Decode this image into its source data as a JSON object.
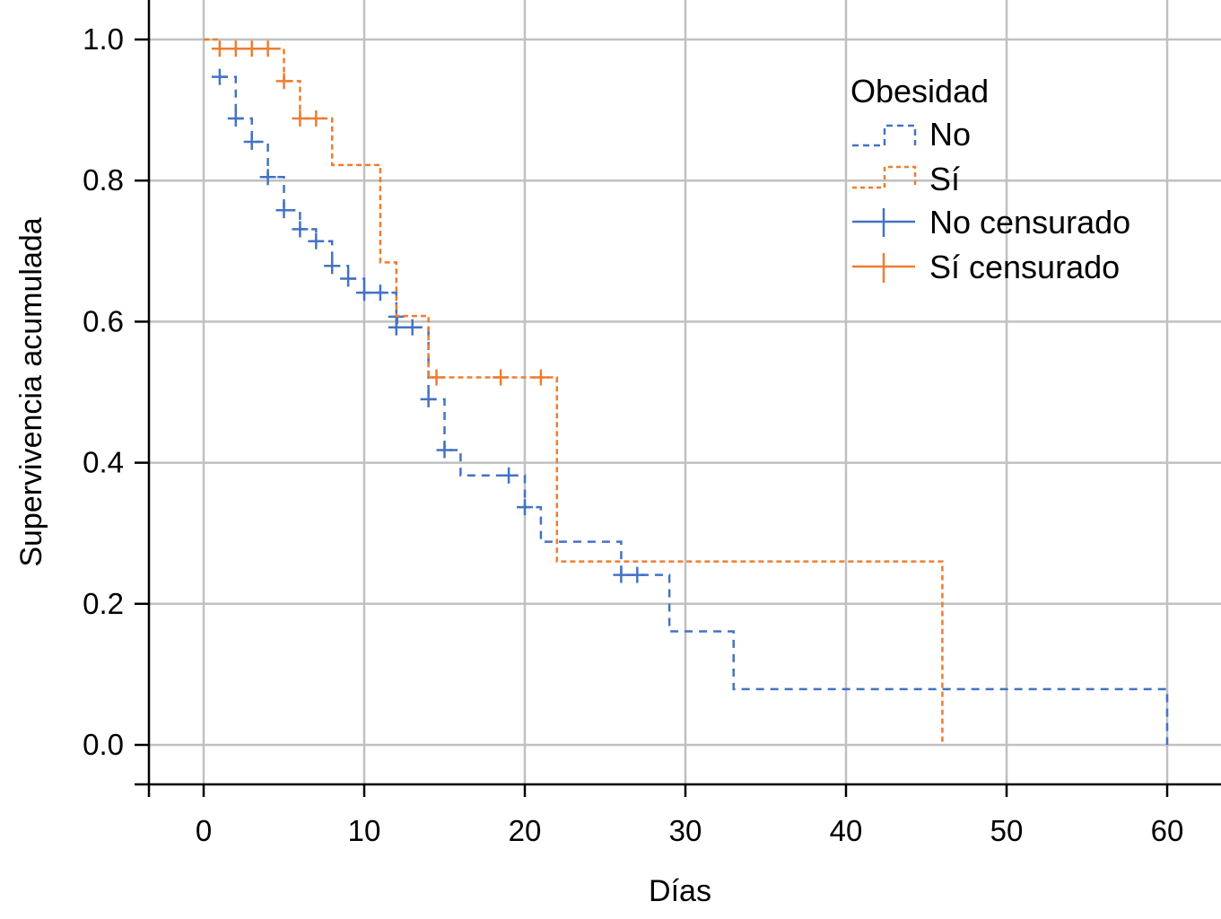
{
  "chart_data": {
    "type": "line",
    "subtype": "kaplan-meier-step",
    "title": "",
    "xlabel": "Días",
    "ylabel": "Supervivencia acumulada",
    "xlim": [
      -3.4,
      63
    ],
    "ylim": [
      -0.06,
      1.06
    ],
    "xticks": [
      0,
      10,
      20,
      30,
      40,
      50,
      60
    ],
    "yticks": [
      0.0,
      0.2,
      0.4,
      0.6,
      0.8,
      1.0
    ],
    "xtick_labels": [
      "0",
      "10",
      "20",
      "30",
      "40",
      "50",
      "60"
    ],
    "ytick_labels": [
      "0.0",
      "0.2",
      "0.4",
      "0.6",
      "0.8",
      "1.0"
    ],
    "grid": true,
    "legend": {
      "title": "Obesidad",
      "placement": "top-right",
      "entries": [
        {
          "label": "No",
          "style": "dashed-step",
          "color": "#4472c4"
        },
        {
          "label": "Sí",
          "style": "dotted-step",
          "color": "#ed7d31"
        },
        {
          "label": "No censurado",
          "style": "censor-mark",
          "color": "#4472c4"
        },
        {
          "label": "Sí censurado",
          "style": "censor-mark",
          "color": "#ed7d31"
        }
      ]
    },
    "series": [
      {
        "name": "No",
        "color": "#4472c4",
        "steps": [
          {
            "x": 1,
            "y": 0.947
          },
          {
            "x": 2,
            "y": 0.888
          },
          {
            "x": 3,
            "y": 0.855
          },
          {
            "x": 4,
            "y": 0.805
          },
          {
            "x": 5,
            "y": 0.758
          },
          {
            "x": 6,
            "y": 0.731
          },
          {
            "x": 7,
            "y": 0.714
          },
          {
            "x": 8,
            "y": 0.679
          },
          {
            "x": 9,
            "y": 0.661
          },
          {
            "x": 10,
            "y": 0.641
          },
          {
            "x": 12,
            "y": 0.607
          },
          {
            "x": 12.05,
            "y": 0.592
          },
          {
            "x": 14,
            "y": 0.49
          },
          {
            "x": 15,
            "y": 0.418
          },
          {
            "x": 16,
            "y": 0.382
          },
          {
            "x": 20,
            "y": 0.337
          },
          {
            "x": 21,
            "y": 0.288
          },
          {
            "x": 26,
            "y": 0.241
          },
          {
            "x": 29,
            "y": 0.161
          },
          {
            "x": 33,
            "y": 0.079
          },
          {
            "x": 60,
            "y": 0.0
          }
        ],
        "end_x": 60,
        "censored": [
          {
            "x": 1,
            "y": 0.947
          },
          {
            "x": 2,
            "y": 0.888
          },
          {
            "x": 3,
            "y": 0.855
          },
          {
            "x": 4,
            "y": 0.805
          },
          {
            "x": 5,
            "y": 0.758
          },
          {
            "x": 6,
            "y": 0.731
          },
          {
            "x": 7,
            "y": 0.714
          },
          {
            "x": 8,
            "y": 0.679
          },
          {
            "x": 9,
            "y": 0.661
          },
          {
            "x": 10,
            "y": 0.641
          },
          {
            "x": 11,
            "y": 0.641
          },
          {
            "x": 12,
            "y": 0.607
          },
          {
            "x": 12,
            "y": 0.592
          },
          {
            "x": 13,
            "y": 0.592
          },
          {
            "x": 14,
            "y": 0.49
          },
          {
            "x": 15,
            "y": 0.418
          },
          {
            "x": 19,
            "y": 0.382
          },
          {
            "x": 20,
            "y": 0.337
          },
          {
            "x": 26,
            "y": 0.241
          },
          {
            "x": 27,
            "y": 0.241
          }
        ]
      },
      {
        "name": "Sí",
        "color": "#ed7d31",
        "start": {
          "x": 0,
          "y": 1.0
        },
        "steps": [
          {
            "x": 1,
            "y": 0.987
          },
          {
            "x": 5,
            "y": 0.941
          },
          {
            "x": 6,
            "y": 0.888
          },
          {
            "x": 8,
            "y": 0.822
          },
          {
            "x": 11,
            "y": 0.684
          },
          {
            "x": 12,
            "y": 0.608
          },
          {
            "x": 14,
            "y": 0.521
          },
          {
            "x": 22,
            "y": 0.26
          },
          {
            "x": 46,
            "y": 0.0
          }
        ],
        "end_x": 46,
        "censored": [
          {
            "x": 1,
            "y": 0.987
          },
          {
            "x": 2,
            "y": 0.987
          },
          {
            "x": 3,
            "y": 0.987
          },
          {
            "x": 4,
            "y": 0.987
          },
          {
            "x": 5,
            "y": 0.941
          },
          {
            "x": 6,
            "y": 0.888
          },
          {
            "x": 7,
            "y": 0.888
          },
          {
            "x": 14.5,
            "y": 0.521
          },
          {
            "x": 18.5,
            "y": 0.521
          },
          {
            "x": 21,
            "y": 0.521
          }
        ]
      }
    ]
  }
}
